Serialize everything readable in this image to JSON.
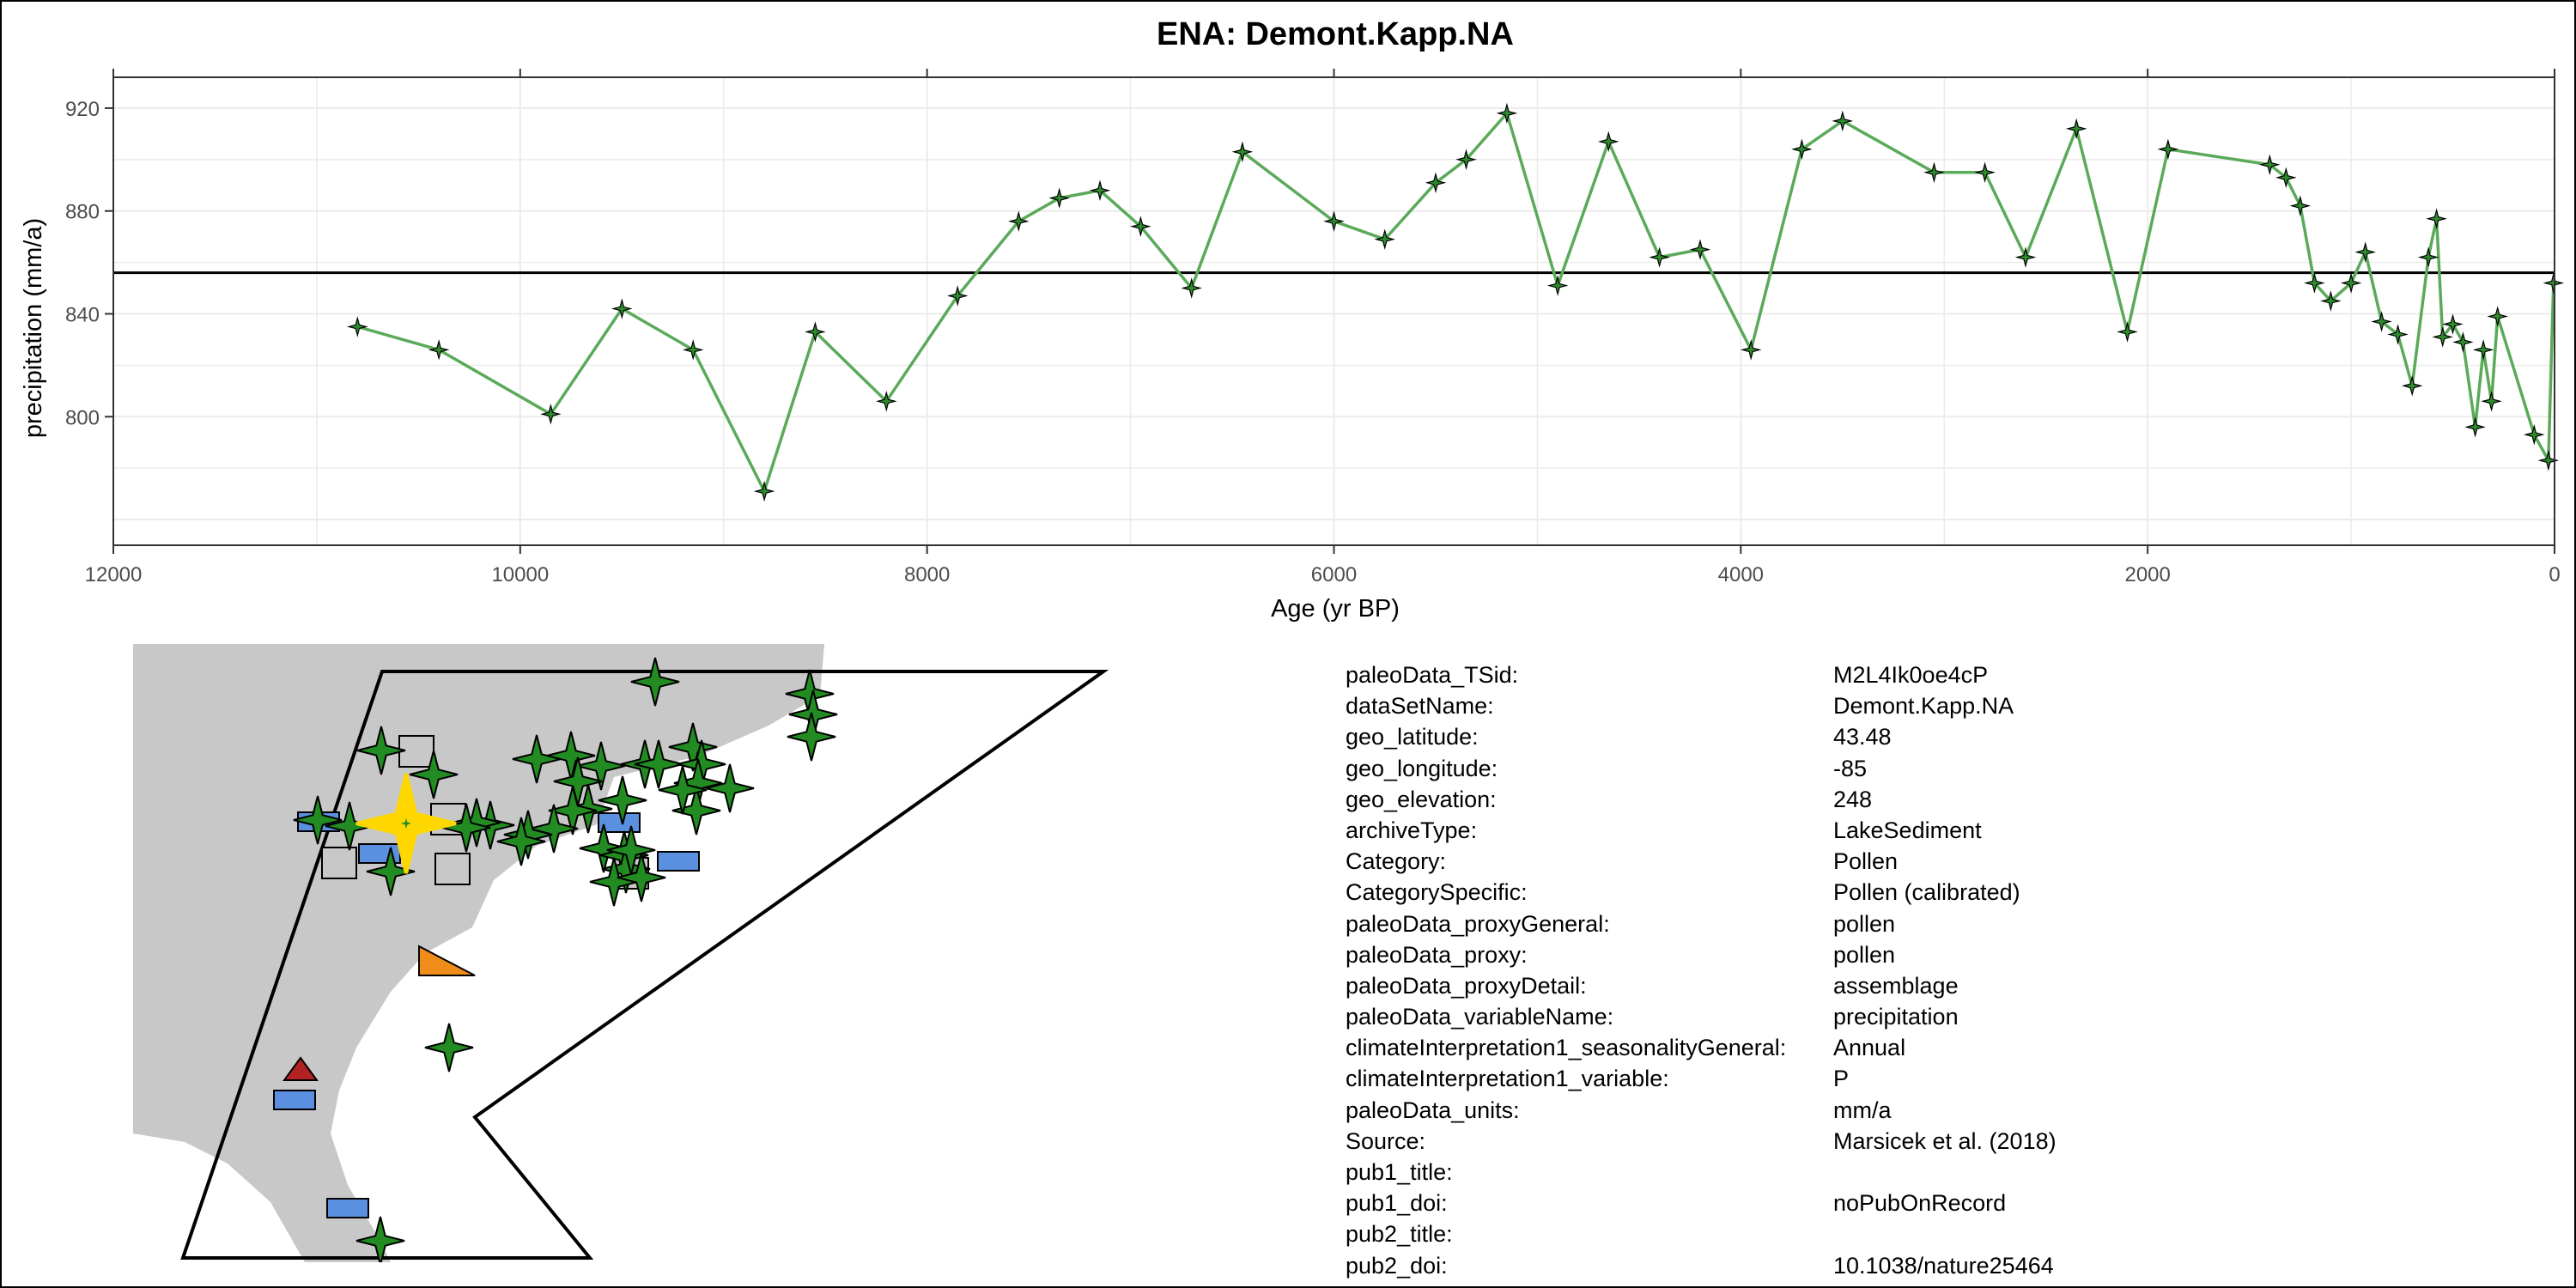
{
  "chart_data": {
    "type": "line",
    "title": "ENA: Demont.Kapp.NA",
    "xlabel": "Age (yr BP)",
    "ylabel": "precipitation (mm/a)",
    "xlim": [
      12000,
      0
    ],
    "x_reversed": true,
    "ylim": [
      750,
      932
    ],
    "x_ticks": [
      12000,
      10000,
      8000,
      6000,
      4000,
      2000,
      0
    ],
    "x_tick_labels": [
      "12000",
      "10000",
      "8000",
      "6000",
      "4000",
      "2000",
      "0"
    ],
    "y_ticks": [
      800,
      840,
      880,
      920
    ],
    "y_tick_labels": [
      "800",
      "840",
      "880",
      "920"
    ],
    "grid": true,
    "mean_line": 856,
    "line_color": "#5aaa5a",
    "marker_color": "#2e8b2e",
    "series": [
      {
        "x": [
          10800,
          10400,
          9850,
          9500,
          9150,
          8800,
          8550,
          8200,
          7850,
          7550,
          7350,
          7150,
          6950,
          6700,
          6450,
          6000,
          5750,
          5500,
          5350,
          5150,
          4900,
          4650,
          4400,
          4200,
          3950,
          3700,
          3500,
          3050,
          2800,
          2600,
          2350,
          2100,
          1900,
          1400,
          1320,
          1250,
          1180,
          1100,
          1000,
          930,
          850,
          770,
          700,
          620,
          580,
          550,
          500,
          450,
          390,
          350,
          310,
          280,
          100,
          30,
          5
        ],
        "y": [
          835,
          826,
          801,
          842,
          826,
          771,
          833,
          806,
          847,
          876,
          885,
          888,
          874,
          850,
          903,
          876,
          869,
          891,
          900,
          918,
          851,
          907,
          862,
          865,
          826,
          904,
          915,
          895,
          895,
          862,
          912,
          833,
          904,
          898,
          893,
          882,
          852,
          845,
          852,
          864,
          837,
          832,
          812,
          862,
          877,
          831,
          836,
          829,
          796,
          826,
          806,
          839,
          793,
          783,
          852
        ]
      }
    ]
  },
  "map": {
    "land_color": "#c8c8c8",
    "marker_colors": {
      "star": "#228b22",
      "highlight": "#ffd700",
      "rectangle_blue": "#5b8fe0",
      "rectangle_gray": "#c8c8c8",
      "triangle_orange": "#f08c1a",
      "triangle_red": "#b22222"
    }
  },
  "metadata": [
    {
      "key": "paleoData_TSid:",
      "value": "M2L4Ik0oe4cP"
    },
    {
      "key": "dataSetName:",
      "value": "Demont.Kapp.NA"
    },
    {
      "key": "geo_latitude:",
      "value": "43.48"
    },
    {
      "key": "geo_longitude:",
      "value": "-85"
    },
    {
      "key": "geo_elevation:",
      "value": "248"
    },
    {
      "key": "archiveType:",
      "value": "LakeSediment"
    },
    {
      "key": "Category:",
      "value": "Pollen"
    },
    {
      "key": "CategorySpecific:",
      "value": "Pollen (calibrated)"
    },
    {
      "key": "paleoData_proxyGeneral:",
      "value": "pollen"
    },
    {
      "key": "paleoData_proxy:",
      "value": "pollen"
    },
    {
      "key": "paleoData_proxyDetail:",
      "value": "assemblage"
    },
    {
      "key": "paleoData_variableName:",
      "value": "precipitation"
    },
    {
      "key": "climateInterpretation1_seasonalityGeneral:",
      "value": "Annual"
    },
    {
      "key": "climateInterpretation1_variable:",
      "value": "P"
    },
    {
      "key": "paleoData_units:",
      "value": "mm/a"
    },
    {
      "key": "Source:",
      "value": "Marsicek et al. (2018)"
    },
    {
      "key": "pub1_title:",
      "value": ""
    },
    {
      "key": "pub1_doi:",
      "value": "noPubOnRecord"
    },
    {
      "key": "pub2_title:",
      "value": ""
    },
    {
      "key": "pub2_doi:",
      "value": "10.1038/nature25464"
    }
  ]
}
